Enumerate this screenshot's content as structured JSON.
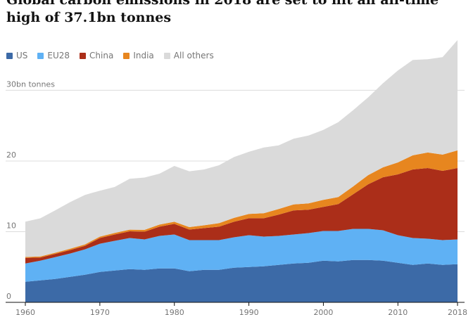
{
  "chart_data": {
    "type": "area",
    "stacked": true,
    "title": "Global carbon emissions in 2018 are set to hit an all-time high of 37.1bn tonnes",
    "ylabel": "30bn tonnes",
    "ylim": [
      0,
      38
    ],
    "yticks": [
      0,
      10,
      20,
      30
    ],
    "ytick_labels": [
      "0",
      "10",
      "20",
      "30bn tonnes"
    ],
    "xlim": [
      1960,
      2018
    ],
    "xticks": [
      1960,
      1970,
      1980,
      1990,
      2000,
      2010,
      2018
    ],
    "x": [
      1960,
      1962,
      1964,
      1966,
      1968,
      1970,
      1972,
      1974,
      1976,
      1978,
      1980,
      1982,
      1984,
      1986,
      1988,
      1990,
      1992,
      1994,
      1996,
      1998,
      2000,
      2002,
      2004,
      2006,
      2008,
      2010,
      2012,
      2014,
      2016,
      2018
    ],
    "series": [
      {
        "name": "US",
        "color": "#3c6aa7",
        "values": [
          2.9,
          3.1,
          3.3,
          3.6,
          3.9,
          4.3,
          4.5,
          4.7,
          4.6,
          4.8,
          4.8,
          4.4,
          4.6,
          4.6,
          4.9,
          5.0,
          5.1,
          5.3,
          5.5,
          5.6,
          5.9,
          5.8,
          6.0,
          6.0,
          5.9,
          5.6,
          5.3,
          5.5,
          5.3,
          5.4
        ]
      },
      {
        "name": "EU28",
        "color": "#5fb1f4",
        "values": [
          2.6,
          2.8,
          3.1,
          3.3,
          3.6,
          4.0,
          4.2,
          4.4,
          4.3,
          4.6,
          4.8,
          4.4,
          4.2,
          4.2,
          4.3,
          4.5,
          4.2,
          4.1,
          4.1,
          4.2,
          4.2,
          4.3,
          4.4,
          4.4,
          4.3,
          3.9,
          3.8,
          3.5,
          3.5,
          3.5
        ]
      },
      {
        "name": "China",
        "color": "#ab2e19",
        "values": [
          0.8,
          0.45,
          0.45,
          0.5,
          0.5,
          0.8,
          0.9,
          0.95,
          1.1,
          1.3,
          1.5,
          1.5,
          1.7,
          1.9,
          2.2,
          2.4,
          2.6,
          3.0,
          3.4,
          3.3,
          3.4,
          3.8,
          4.9,
          6.3,
          7.5,
          8.6,
          9.7,
          10.0,
          9.8,
          10.1
        ]
      },
      {
        "name": "India",
        "color": "#e7861f",
        "values": [
          0.12,
          0.14,
          0.16,
          0.18,
          0.2,
          0.2,
          0.22,
          0.24,
          0.26,
          0.3,
          0.3,
          0.34,
          0.4,
          0.5,
          0.55,
          0.6,
          0.7,
          0.8,
          0.85,
          0.9,
          1.0,
          1.0,
          1.1,
          1.3,
          1.4,
          1.7,
          2.0,
          2.2,
          2.3,
          2.5
        ]
      },
      {
        "name": "All others",
        "color": "#dadada",
        "values": [
          5.0,
          5.4,
          6.0,
          6.6,
          7.0,
          6.5,
          6.5,
          7.2,
          7.4,
          7.2,
          7.9,
          7.9,
          7.9,
          8.2,
          8.6,
          8.8,
          9.3,
          9.0,
          9.3,
          9.6,
          9.9,
          10.6,
          10.8,
          11.0,
          11.9,
          13.0,
          13.5,
          13.2,
          13.8,
          15.6
        ]
      }
    ]
  }
}
